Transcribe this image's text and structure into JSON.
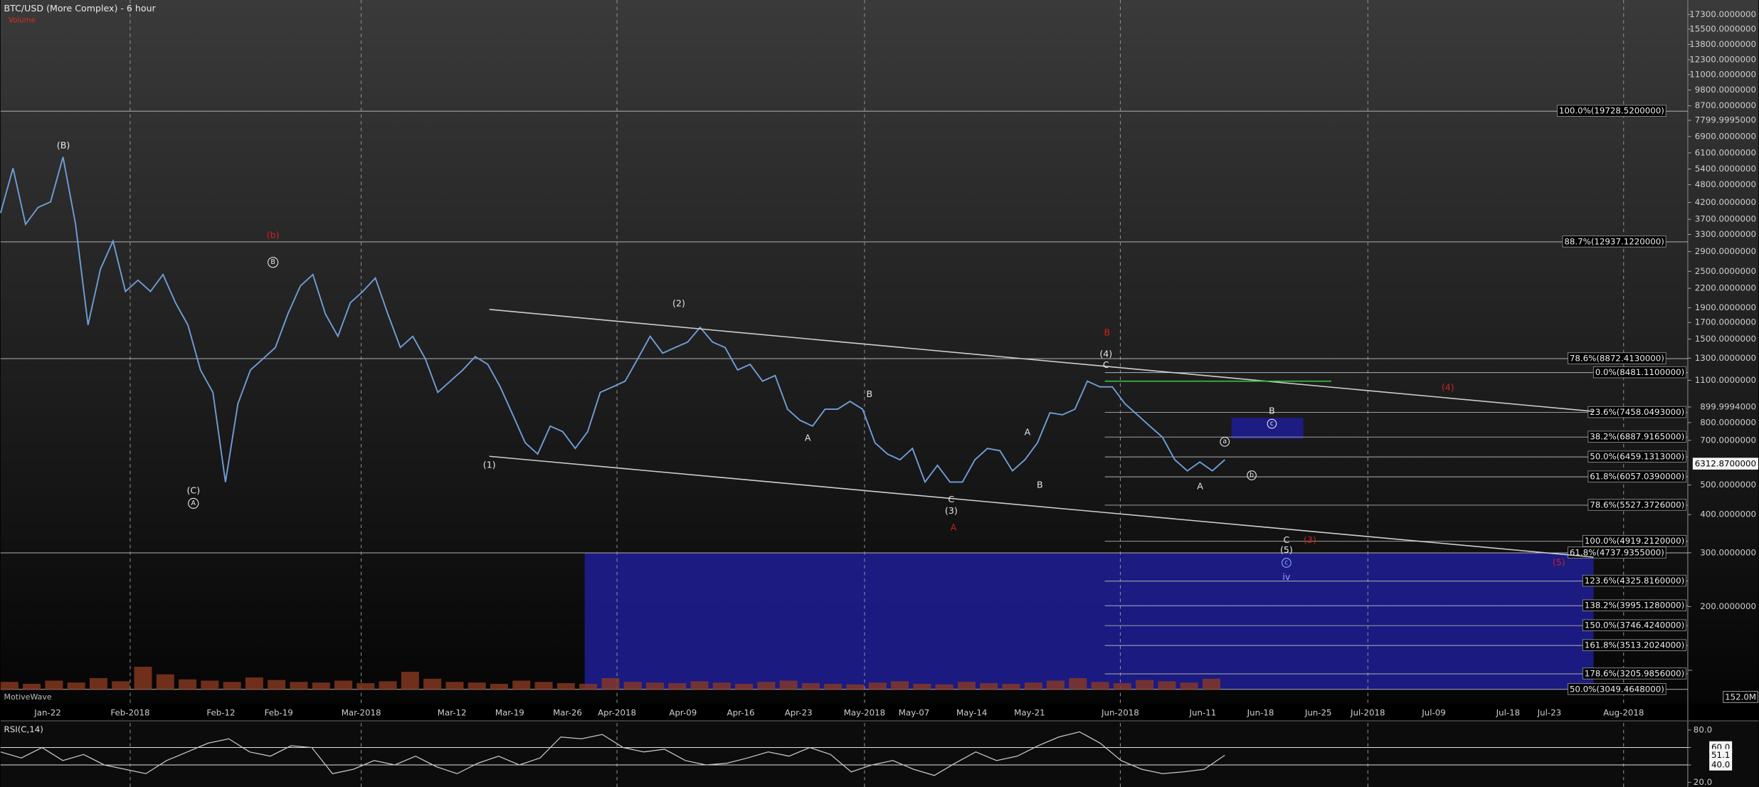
{
  "title": "BTC/USD (More Complex) - 6 hour",
  "watermark": "MotiveWave",
  "chart_data": [
    {
      "type": "line",
      "scale": "log",
      "color": "#6f9fd8",
      "values": [
        14200,
        16410,
        13690,
        14460,
        14720,
        17020,
        13690,
        9890,
        11850,
        12970,
        11020,
        11430,
        11020,
        11640,
        10630,
        9890,
        8555,
        7955,
        5955,
        7670,
        8555,
        8865,
        9195,
        10250,
        11220,
        11640,
        10250,
        9535,
        10630,
        11020,
        11510,
        10250,
        9195,
        9535,
        8865,
        7955,
        8250,
        8555,
        8930,
        8710,
        8100,
        7400,
        6760,
        6520,
        7135,
        7010,
        6640,
        7010,
        7955,
        8100,
        8250,
        8865,
        9535,
        9030,
        9195,
        9360,
        9815,
        9360,
        9195,
        8555,
        8710,
        8250,
        8400,
        7535,
        7270,
        7135,
        7535,
        7535,
        7730,
        7535,
        6760,
        6520,
        6400,
        6640,
        5955,
        6285,
        5955,
        5955,
        6400,
        6640,
        6590,
        6175,
        6400,
        6760,
        7450,
        7400,
        7535,
        8250,
        8100,
        8100,
        7670,
        7400,
        7135,
        6885,
        6400,
        6175,
        6355,
        6175,
        6400
      ],
      "ylim": [
        2972,
        28250
      ],
      "y2lim": [
        101,
        19300
      ],
      "y2ticks": [
        {
          "value": 17300,
          "label": "17300.0000000"
        },
        {
          "value": 15500,
          "label": "15500.0000000"
        },
        {
          "value": 13800,
          "label": "13800.0000000"
        },
        {
          "value": 12300,
          "label": "12300.0000000"
        },
        {
          "value": 11000,
          "label": "11000.0000000"
        },
        {
          "value": 9800,
          "label": "9800.0000000"
        },
        {
          "value": 8700,
          "label": "8700.0000000"
        },
        {
          "value": 7799.9995,
          "label": "7799.9995000"
        },
        {
          "value": 6900,
          "label": "6900.0000000"
        },
        {
          "value": 6100,
          "label": "6100.0000000"
        },
        {
          "value": 5400,
          "label": "5400.0000000"
        },
        {
          "value": 4800,
          "label": "4800.0000000"
        },
        {
          "value": 4200,
          "label": "4200.0000000"
        },
        {
          "value": 3700,
          "label": "3700.0000000"
        },
        {
          "value": 3300,
          "label": "3300.0000000"
        },
        {
          "value": 2900,
          "label": "2900.0000000"
        },
        {
          "value": 2500,
          "label": "2500.0000000"
        },
        {
          "value": 2200,
          "label": "2200.0000000"
        },
        {
          "value": 1900,
          "label": "1900.0000000"
        },
        {
          "value": 1700,
          "label": "1700.0000000"
        },
        {
          "value": 1500,
          "label": "1500.0000000"
        },
        {
          "value": 1300,
          "label": "1300.0000000"
        },
        {
          "value": 1100,
          "label": "1100.0000000"
        },
        {
          "value": 899.9994,
          "label": "899.9994000"
        },
        {
          "value": 800,
          "label": "800.0000000"
        },
        {
          "value": 700,
          "label": "700.0000000"
        },
        {
          "value": 500,
          "label": "500.0000000"
        },
        {
          "value": 400,
          "label": "400.0000000"
        },
        {
          "value": 300,
          "label": "300.0000000"
        },
        {
          "value": 200,
          "label": "200.0000000"
        }
      ],
      "xticks": [
        "Jan-22",
        "Feb-2018",
        "Feb-12",
        "Feb-19",
        "Mar-2018",
        "Mar-12",
        "Mar-19",
        "Mar-26",
        "Apr-2018",
        "Apr-09",
        "Apr-16",
        "Apr-23",
        "May-2018",
        "May-07",
        "May-14",
        "May-21",
        "Jun-2018",
        "Jun-11",
        "Jun-18",
        "Jun-25",
        "Jul-2018",
        "Jul-09",
        "Jul-18",
        "Jul-23",
        "Aug-2018"
      ],
      "xgrid": true,
      "last_price": {
        "value": 6312.87,
        "label": "6312.8700000"
      },
      "fib_full": [
        {
          "value": 19728.52,
          "label": "100.0%(19728.5200000)"
        },
        {
          "value": 12937.122,
          "label": "88.7%(12937.1220000)"
        },
        {
          "value": 8872.413,
          "label": "78.6%(8872.4130000)"
        },
        {
          "value": 4737.9355,
          "label": "61.8%(4737.9355000)"
        },
        {
          "value": 3049.4648,
          "label": "50.0%(3049.4648000)"
        }
      ],
      "fib_recent": [
        {
          "value": 8481.11,
          "label": "0.0%(8481.1100000)"
        },
        {
          "value": 7458.0493,
          "label": "23.6%(7458.0493000)"
        },
        {
          "value": 6887.9165,
          "label": "38.2%(6887.9165000)"
        },
        {
          "value": 6459.1313,
          "label": "50.0%(6459.1313000)"
        },
        {
          "value": 6057.039,
          "label": "61.8%(6057.0390000)"
        },
        {
          "value": 5527.3726,
          "label": "78.6%(5527.3726000)"
        },
        {
          "value": 4919.212,
          "label": "100.0%(4919.2120000)"
        },
        {
          "value": 4325.816,
          "label": "123.6%(4325.8160000)"
        },
        {
          "value": 3995.128,
          "label": "138.2%(3995.1280000)"
        },
        {
          "value": 3746.424,
          "label": "150.0%(3746.4240000)"
        },
        {
          "value": 3513.2024,
          "label": "161.8%(3513.2024000)"
        },
        {
          "value": 3205.9856,
          "label": "178.6%(3205.9856000)"
        }
      ],
      "target_zone": {
        "top": 7330,
        "bottom": 6850
      },
      "wave_labels": [
        "(B)",
        "(C)",
        "A",
        "(b)",
        "B",
        "(1)",
        "(2)",
        "A",
        "B",
        "C",
        "(3)",
        "A",
        "A",
        "B",
        "B",
        "(4)",
        "C",
        "(4)",
        "B",
        "c",
        "a",
        "b",
        "A",
        "C",
        "(3)",
        "(5)",
        "c",
        "iv",
        "(5)"
      ]
    },
    {
      "type": "bar",
      "title": "Volume",
      "color": "#8a3a20",
      "values": [
        60,
        45,
        70,
        55,
        90,
        65,
        180,
        120,
        80,
        70,
        60,
        95,
        75,
        60,
        55,
        70,
        50,
        65,
        140,
        85,
        60,
        55,
        45,
        70,
        60,
        50,
        45,
        90,
        60,
        55,
        50,
        65,
        55,
        45,
        60,
        70,
        50,
        45,
        40,
        55,
        65,
        45,
        40,
        60,
        50,
        45,
        55,
        70,
        90,
        60,
        50,
        75,
        65,
        55,
        85
      ],
      "ylim": [
        0,
        400
      ],
      "yticks": [
        {
          "value": 152,
          "label": "152.0M"
        }
      ]
    },
    {
      "type": "line",
      "title": "RSI(C,14)",
      "color": "#c8c8c8",
      "values": [
        55,
        48,
        60,
        45,
        52,
        40,
        35,
        30,
        45,
        55,
        65,
        70,
        55,
        50,
        62,
        60,
        30,
        35,
        45,
        40,
        50,
        38,
        30,
        42,
        50,
        40,
        48,
        72,
        70,
        75,
        60,
        55,
        58,
        45,
        40,
        42,
        48,
        55,
        50,
        60,
        52,
        32,
        40,
        45,
        35,
        28,
        42,
        55,
        45,
        50,
        62,
        72,
        78,
        65,
        45,
        35,
        30,
        32,
        35,
        51.1
      ],
      "ylim": [
        14.7,
        88
      ],
      "yticks": [
        {
          "value": 80,
          "label": "80.0"
        },
        {
          "value": 60,
          "label": "60.0"
        },
        {
          "value": 40,
          "label": "40.0"
        },
        {
          "value": 20,
          "label": "20.0"
        }
      ],
      "levels": [
        60,
        40
      ],
      "last_label": {
        "value": 51.1,
        "label": "51.1"
      }
    }
  ]
}
